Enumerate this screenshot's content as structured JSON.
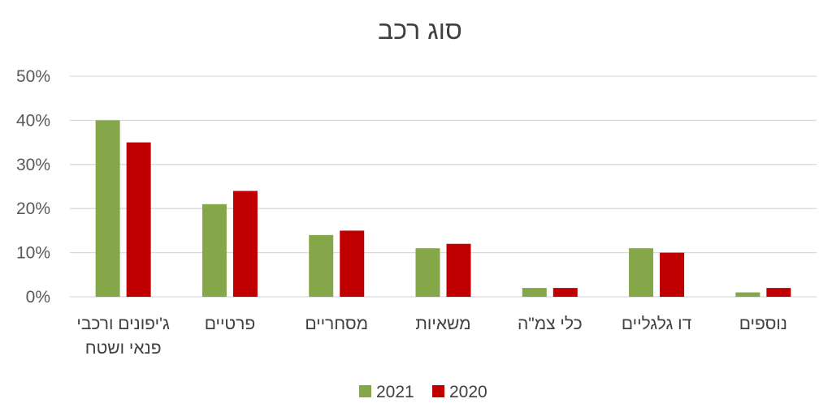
{
  "chart_data": {
    "type": "bar",
    "title": "סוג רכב",
    "categories": [
      [
        "ג'יפונים ורכבי",
        "פנאי ושטח"
      ],
      [
        "פרטיים"
      ],
      [
        "מסחריים"
      ],
      [
        "משאיות"
      ],
      [
        "כלי צמ\"ה"
      ],
      [
        "דו גלגליים"
      ],
      [
        "נוספים"
      ]
    ],
    "series": [
      {
        "name": "2021",
        "color": "#86A64A",
        "values": [
          40,
          21,
          14,
          11,
          2,
          11,
          1
        ]
      },
      {
        "name": "2020",
        "color": "#C00000",
        "values": [
          35,
          24,
          15,
          12,
          2,
          10,
          2
        ]
      }
    ],
    "ylim": [
      0,
      50
    ],
    "yticks": [
      0,
      10,
      20,
      30,
      40,
      50
    ],
    "ytick_labels": [
      "0%",
      "10%",
      "20%",
      "30%",
      "40%",
      "50%"
    ],
    "grid": true,
    "legend_position": "bottom",
    "gridline_color": "#D9D9D9"
  }
}
